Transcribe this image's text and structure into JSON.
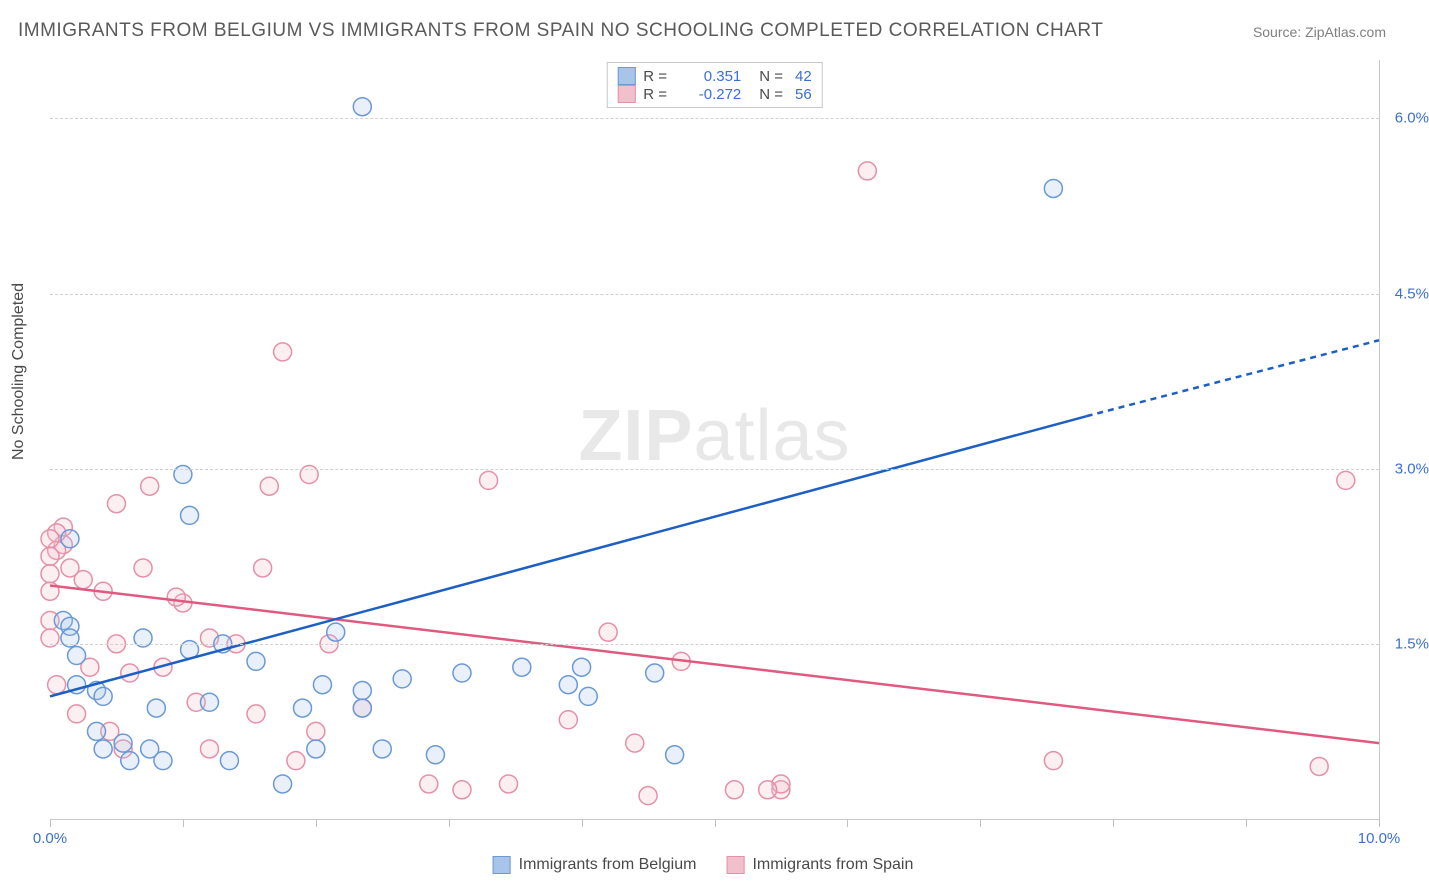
{
  "title": "IMMIGRANTS FROM BELGIUM VS IMMIGRANTS FROM SPAIN NO SCHOOLING COMPLETED CORRELATION CHART",
  "source": "Source: ZipAtlas.com",
  "watermark_a": "ZIP",
  "watermark_b": "atlas",
  "y_axis_label": "No Schooling Completed",
  "chart": {
    "type": "scatter",
    "xlim": [
      0.0,
      10.0
    ],
    "ylim": [
      0.0,
      6.5
    ],
    "x_ticks": [
      0.0,
      1.0,
      2.0,
      3.0,
      4.0,
      5.0,
      6.0,
      7.0,
      8.0,
      9.0,
      10.0
    ],
    "x_tick_labels_shown": {
      "0": "0.0%",
      "10": "10.0%"
    },
    "y_grid": [
      1.5,
      3.0,
      4.5,
      6.0
    ],
    "y_tick_labels": [
      "1.5%",
      "3.0%",
      "4.5%",
      "6.0%"
    ],
    "background": "#ffffff",
    "grid_color": "#d0d0d0",
    "axis_color": "#c8c8c8",
    "marker_radius": 9,
    "marker_stroke_width": 1.5,
    "marker_fill_opacity": 0.25,
    "trend_line_width": 2.5,
    "series": {
      "belgium": {
        "label": "Immigrants from Belgium",
        "color_stroke": "#6a99d8",
        "color_fill": "#a8c4e8",
        "trend_color": "#1e5fc4",
        "r_value": "0.351",
        "n_value": "42",
        "trend_start": [
          0.0,
          1.05
        ],
        "trend_solid_end": [
          7.8,
          3.45
        ],
        "trend_dash_end": [
          10.0,
          4.1
        ],
        "points": [
          [
            2.35,
            6.1
          ],
          [
            7.55,
            5.4
          ],
          [
            0.15,
            2.4
          ],
          [
            0.1,
            1.7
          ],
          [
            0.15,
            1.65
          ],
          [
            0.15,
            1.55
          ],
          [
            0.2,
            1.4
          ],
          [
            0.2,
            1.15
          ],
          [
            0.35,
            0.75
          ],
          [
            0.35,
            1.1
          ],
          [
            0.4,
            1.05
          ],
          [
            0.4,
            0.6
          ],
          [
            0.55,
            0.65
          ],
          [
            0.6,
            0.5
          ],
          [
            0.7,
            1.55
          ],
          [
            0.75,
            0.6
          ],
          [
            0.8,
            0.95
          ],
          [
            0.85,
            0.5
          ],
          [
            1.0,
            2.95
          ],
          [
            1.05,
            2.6
          ],
          [
            1.05,
            1.45
          ],
          [
            1.2,
            1.0
          ],
          [
            1.3,
            1.5
          ],
          [
            1.35,
            0.5
          ],
          [
            1.55,
            1.35
          ],
          [
            1.75,
            0.3
          ],
          [
            1.9,
            0.95
          ],
          [
            2.0,
            0.6
          ],
          [
            2.05,
            1.15
          ],
          [
            2.15,
            1.6
          ],
          [
            2.35,
            1.1
          ],
          [
            2.35,
            0.95
          ],
          [
            2.5,
            0.6
          ],
          [
            2.65,
            1.2
          ],
          [
            2.9,
            0.55
          ],
          [
            3.1,
            1.25
          ],
          [
            3.55,
            1.3
          ],
          [
            3.9,
            1.15
          ],
          [
            4.0,
            1.3
          ],
          [
            4.05,
            1.05
          ],
          [
            4.55,
            1.25
          ],
          [
            4.7,
            0.55
          ]
        ]
      },
      "spain": {
        "label": "Immigrants from Spain",
        "color_stroke": "#e690a8",
        "color_fill": "#f2bfcc",
        "trend_color": "#e05a80",
        "r_value": "-0.272",
        "n_value": "56",
        "trend_start": [
          0.0,
          2.0
        ],
        "trend_solid_end": [
          10.0,
          0.65
        ],
        "points": [
          [
            6.15,
            5.55
          ],
          [
            9.75,
            2.9
          ],
          [
            9.55,
            0.45
          ],
          [
            7.55,
            0.5
          ],
          [
            5.5,
            0.25
          ],
          [
            5.5,
            0.3
          ],
          [
            5.4,
            0.25
          ],
          [
            5.15,
            0.25
          ],
          [
            4.75,
            1.35
          ],
          [
            4.5,
            0.2
          ],
          [
            4.4,
            0.65
          ],
          [
            4.2,
            1.6
          ],
          [
            3.9,
            0.85
          ],
          [
            3.45,
            0.3
          ],
          [
            3.3,
            2.9
          ],
          [
            3.1,
            0.25
          ],
          [
            2.85,
            0.3
          ],
          [
            2.35,
            0.95
          ],
          [
            2.1,
            1.5
          ],
          [
            2.0,
            0.75
          ],
          [
            1.95,
            2.95
          ],
          [
            1.85,
            0.5
          ],
          [
            1.75,
            4.0
          ],
          [
            1.65,
            2.85
          ],
          [
            1.6,
            2.15
          ],
          [
            1.55,
            0.9
          ],
          [
            1.4,
            1.5
          ],
          [
            1.2,
            0.6
          ],
          [
            1.2,
            1.55
          ],
          [
            1.1,
            1.0
          ],
          [
            1.0,
            1.85
          ],
          [
            0.95,
            1.9
          ],
          [
            0.85,
            1.3
          ],
          [
            0.75,
            2.85
          ],
          [
            0.7,
            2.15
          ],
          [
            0.6,
            1.25
          ],
          [
            0.55,
            0.6
          ],
          [
            0.5,
            2.7
          ],
          [
            0.5,
            1.5
          ],
          [
            0.45,
            0.75
          ],
          [
            0.4,
            1.95
          ],
          [
            0.3,
            1.3
          ],
          [
            0.25,
            2.05
          ],
          [
            0.2,
            0.9
          ],
          [
            0.15,
            2.15
          ],
          [
            0.1,
            2.5
          ],
          [
            0.1,
            2.35
          ],
          [
            0.05,
            2.45
          ],
          [
            0.05,
            2.3
          ],
          [
            0.0,
            2.4
          ],
          [
            0.0,
            2.25
          ],
          [
            0.0,
            2.1
          ],
          [
            0.0,
            1.95
          ],
          [
            0.0,
            1.7
          ],
          [
            0.0,
            1.55
          ],
          [
            0.05,
            1.15
          ]
        ]
      }
    }
  },
  "legend_top": [
    {
      "swatch_fill": "#a8c4e8",
      "swatch_stroke": "#6a99d8",
      "r": "0.351",
      "n": "42"
    },
    {
      "swatch_fill": "#f2bfcc",
      "swatch_stroke": "#e690a8",
      "r": "-0.272",
      "n": "56"
    }
  ]
}
